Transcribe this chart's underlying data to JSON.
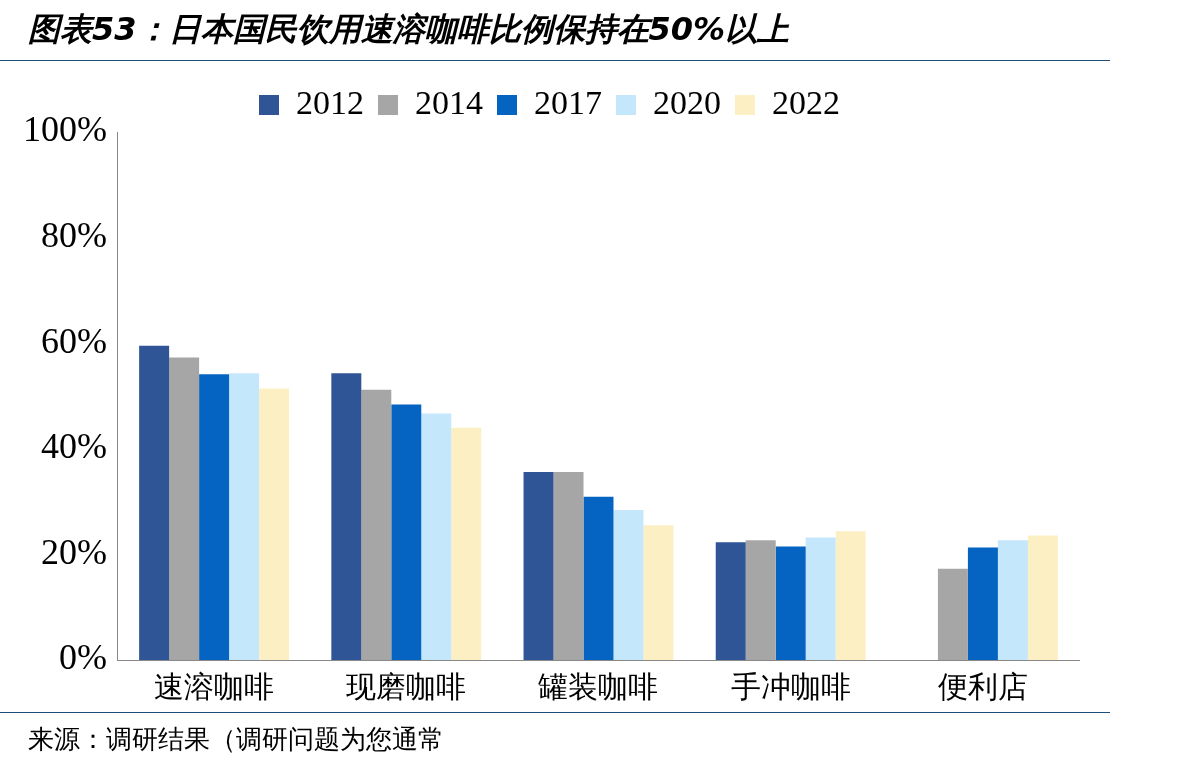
{
  "chart_data": {
    "type": "bar",
    "title": "图表53：日本国民饮用速溶咖啡比例保持在50%以上",
    "categories": [
      "速溶咖啡",
      "现磨咖啡",
      "罐装咖啡",
      "手冲咖啡",
      "便利店"
    ],
    "series": [
      {
        "name": "2012",
        "color": "#2f5597",
        "values": [
          59.5,
          54.3,
          35.6,
          22.3,
          null
        ]
      },
      {
        "name": "2014",
        "color": "#a6a6a6",
        "values": [
          57.3,
          51.2,
          35.6,
          22.7,
          17.3
        ]
      },
      {
        "name": "2017",
        "color": "#0563c1",
        "values": [
          54.1,
          48.4,
          30.9,
          21.5,
          21.3
        ]
      },
      {
        "name": "2020",
        "color": "#c5e7fb",
        "values": [
          54.3,
          46.7,
          28.4,
          23.2,
          22.7
        ]
      },
      {
        "name": "2022",
        "color": "#fdefc4",
        "values": [
          51.4,
          44.0,
          25.5,
          24.4,
          23.6
        ]
      }
    ],
    "ylim": [
      0,
      100
    ],
    "yticks": [
      {
        "value": 0,
        "label": "0%"
      },
      {
        "value": 20,
        "label": "20%"
      },
      {
        "value": 40,
        "label": "40%"
      },
      {
        "value": 60,
        "label": "60%"
      },
      {
        "value": 80,
        "label": "80%"
      },
      {
        "value": 100,
        "label": "100%"
      }
    ],
    "grid": false,
    "legend": "top",
    "annotations": [
      "来源：调研结果（调研问题为您通常"
    ]
  }
}
